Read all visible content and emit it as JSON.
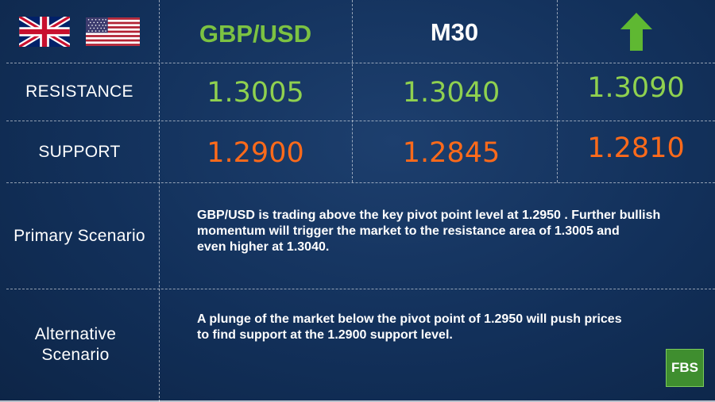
{
  "header": {
    "pair": "GBP/USD",
    "timeframe": "M30",
    "direction_icon": "arrow-up-icon",
    "flags": [
      "uk-flag-icon",
      "us-flag-icon"
    ]
  },
  "resistance": {
    "label": "RESISTANCE",
    "levels": [
      "1.3005",
      "1.3040",
      "1.3090"
    ]
  },
  "support": {
    "label": "SUPPORT",
    "levels": [
      "1.2900",
      "1.2845",
      "1.2810"
    ]
  },
  "primary": {
    "label": "Primary Scenario",
    "lines": [
      "GBP/USD is trading above the key pivot point level at 1.2950 . Further bullish",
      "momentum will trigger the market to the resistance area of 1.3005 and",
      "even higher at 1.3040."
    ]
  },
  "alternative": {
    "label_lines": [
      "Alternative",
      "Scenario"
    ],
    "lines": [
      "A plunge of the market below the pivot point of 1.2950 will push prices",
      "to find support at the 1.2900 support level."
    ]
  },
  "logo": {
    "text": "FBS"
  },
  "colors": {
    "green": "#8fd14f",
    "red": "#ff6a1a",
    "background": "#12305a"
  }
}
